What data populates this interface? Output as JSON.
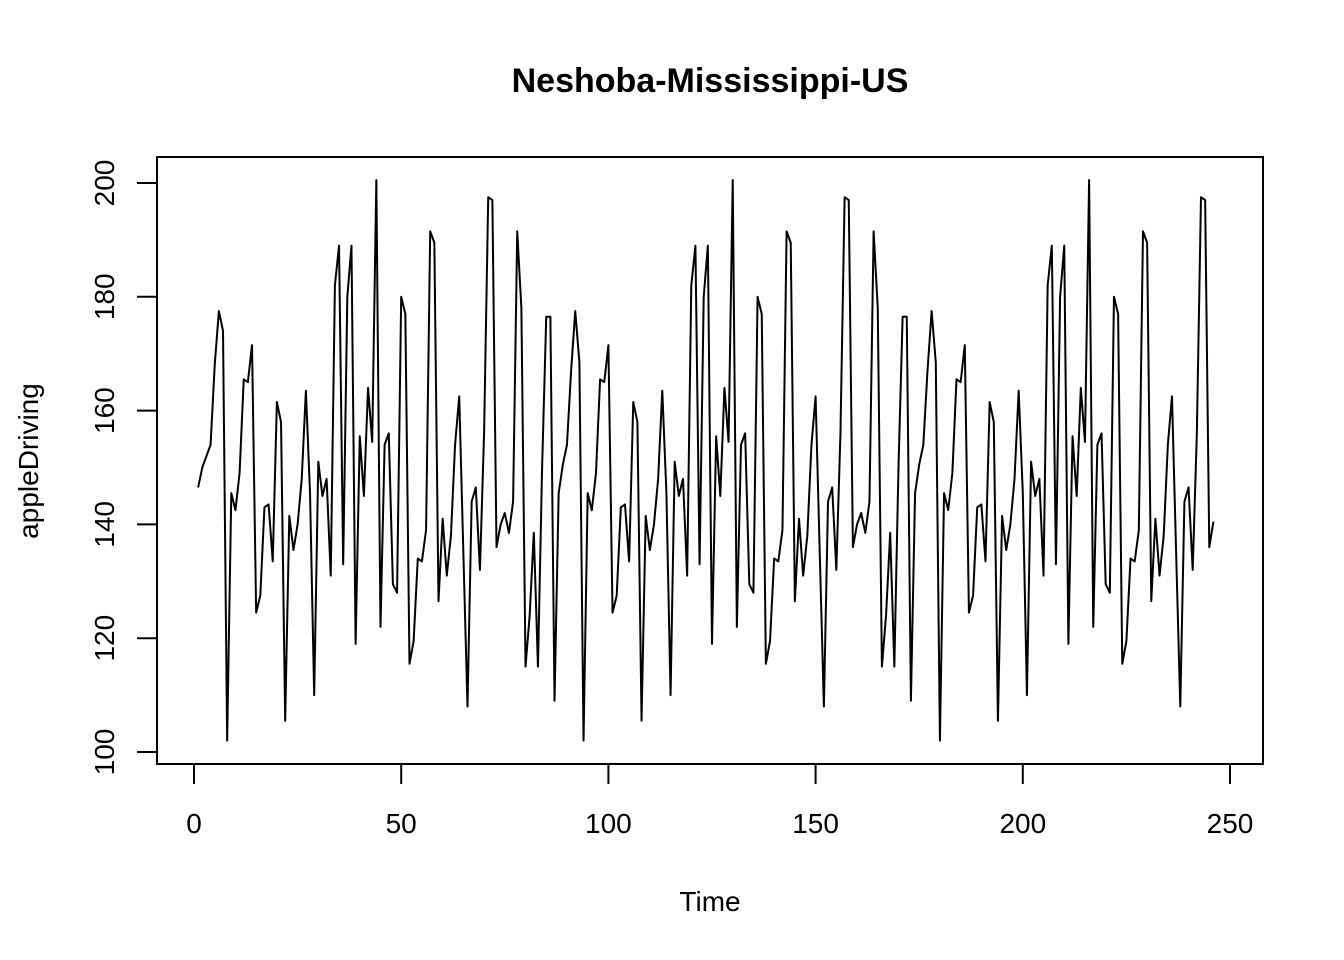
{
  "chart_data": {
    "type": "line",
    "title": "Neshoba-Mississippi-US",
    "xlabel": "Time",
    "ylabel": "appleDriving",
    "xlim": [
      1,
      248
    ],
    "ylim": [
      100,
      200
    ],
    "xticks": [
      0,
      50,
      100,
      150,
      200,
      250
    ],
    "yticks": [
      100,
      120,
      140,
      160,
      180,
      200
    ],
    "grid": false,
    "legend": "none",
    "line_color": "#000000",
    "series": [
      {
        "x_start": 1,
        "values": [
          146.5,
          150.0,
          152.0,
          154.0,
          168.0,
          177.5,
          174.0,
          102.0,
          145.5,
          142.5,
          149.0,
          165.5,
          165.0,
          171.5,
          124.5,
          127.5,
          143.0,
          143.5,
          133.5,
          161.5,
          158.0,
          105.5,
          141.5,
          135.5,
          140.0,
          148.0,
          163.5,
          145.5,
          110.0,
          151.0,
          145.0,
          148.0,
          131.0,
          182.0,
          189.0,
          133.0,
          180.0,
          189.0,
          119.0,
          155.5,
          145.0,
          164.0,
          154.5,
          200.5,
          122.0,
          154.0,
          156.0,
          129.5,
          128.0,
          180.0,
          177.0,
          115.5,
          119.5,
          134.0,
          133.5,
          139.0,
          191.5,
          189.5,
          126.5,
          141.0,
          131.0,
          138.0,
          154.0,
          162.5,
          135.0,
          108.0,
          144.0,
          146.5,
          132.0,
          156.0,
          197.5,
          197.0,
          136.0,
          140.0,
          142.0,
          138.5,
          144.0,
          191.5,
          178.0,
          115.0,
          124.0,
          138.5,
          115.0,
          150.0,
          176.5,
          176.5,
          109.0,
          145.5,
          150.5,
          154.0,
          167.0,
          177.5,
          168.5,
          102.0,
          145.5,
          142.5,
          149.0,
          165.5,
          165.0,
          171.5,
          124.5,
          127.5,
          143.0,
          143.5,
          133.5,
          161.5,
          158.0,
          105.5,
          141.5,
          135.5,
          140.0,
          148.0,
          163.5,
          145.5,
          110.0,
          151.0,
          145.0,
          148.0,
          131.0,
          182.0,
          189.0,
          133.0,
          180.0,
          189.0,
          119.0,
          155.5,
          145.0,
          164.0,
          154.5,
          200.5,
          122.0,
          154.0,
          156.0,
          129.5,
          128.0,
          180.0,
          177.0,
          115.5,
          119.5,
          134.0,
          133.5,
          139.0,
          191.5,
          189.5,
          126.5,
          141.0,
          131.0,
          138.0,
          154.0,
          162.5,
          135.0,
          108.0,
          144.0,
          146.5,
          132.0,
          156.0,
          197.5,
          197.0,
          136.0,
          140.0,
          142.0,
          138.5,
          144.0,
          191.5,
          178.0,
          115.0,
          124.0,
          138.5,
          115.0,
          150.0,
          176.5,
          176.5,
          109.0,
          145.5,
          150.5,
          154.0,
          167.0,
          177.5,
          168.5,
          102.0,
          145.5,
          142.5,
          149.0,
          165.5,
          165.0,
          171.5,
          124.5,
          127.5,
          143.0,
          143.5,
          133.5,
          161.5,
          158.0,
          105.5,
          141.5,
          135.5,
          140.0,
          148.0,
          163.5,
          145.5,
          110.0,
          151.0,
          145.0,
          148.0,
          131.0,
          182.0,
          189.0,
          133.0,
          180.0,
          189.0,
          119.0,
          155.5,
          145.0,
          164.0,
          154.5,
          200.5,
          122.0,
          154.0,
          156.0,
          129.5,
          128.0,
          180.0,
          177.0,
          115.5,
          119.5,
          134.0,
          133.5,
          139.0,
          191.5,
          189.5,
          126.5,
          141.0,
          131.0,
          138.0,
          154.0,
          162.5,
          135.0,
          108.0,
          144.0,
          146.5,
          132.0,
          156.0,
          197.5,
          197.0,
          136.0,
          140.5
        ]
      }
    ]
  }
}
